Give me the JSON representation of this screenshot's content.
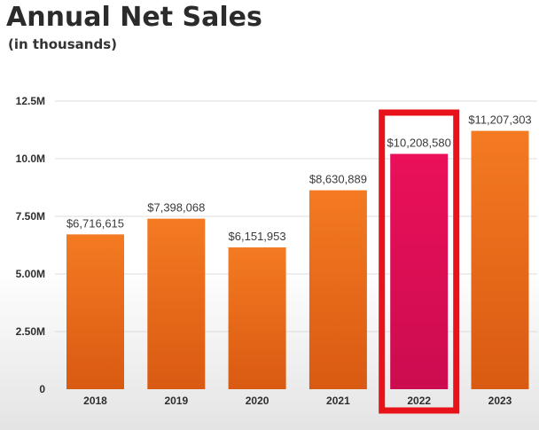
{
  "header": {
    "title": "Annual Net Sales",
    "subtitle": "(in thousands)"
  },
  "chart_data": {
    "type": "bar",
    "title": "Annual Net Sales",
    "subtitle": "(in thousands)",
    "categories": [
      "2018",
      "2019",
      "2020",
      "2021",
      "2022",
      "2023"
    ],
    "values": [
      6716615,
      7398068,
      6151953,
      8630889,
      10208580,
      11207303
    ],
    "data_labels": [
      "$6,716,615",
      "$7,398,068",
      "$6,151,953",
      "$8,630,889",
      "$10,208,580",
      "$11,207,303"
    ],
    "y_ticks": [
      0,
      2500000,
      5000000,
      7500000,
      10000000,
      12500000
    ],
    "y_tick_labels": [
      "0",
      "2.50M",
      "5.00M",
      "7.50M",
      "10.0M",
      "12.5M"
    ],
    "ylim": [
      0,
      12500000
    ],
    "highlighted_category": "2022",
    "grid": true,
    "colors": {
      "bar": "#f07020",
      "bar_dark": "#dd5a14",
      "highlight_bar": "#e8105c",
      "highlight_bar_dark": "#d20c52",
      "highlight_box": "#e8121a",
      "grid": "#dcdcdc"
    }
  }
}
